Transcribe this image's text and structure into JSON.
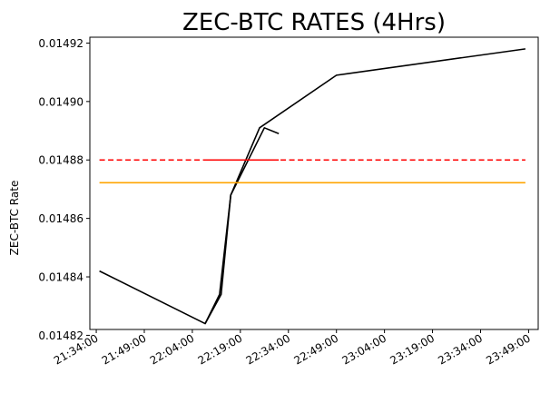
{
  "chart_data": {
    "type": "line",
    "title": "ZEC-BTC RATES (4Hrs)",
    "xlabel": "",
    "ylabel": "ZEC-BTC Rate",
    "x_axis_type": "time",
    "xlim": [
      "21:32:00",
      "23:52:00"
    ],
    "ylim": [
      0.014822,
      0.014922
    ],
    "x_ticks": [
      "21:34:00",
      "21:49:00",
      "22:04:00",
      "22:19:00",
      "22:34:00",
      "22:49:00",
      "23:04:00",
      "23:19:00",
      "23:34:00",
      "23:49:00"
    ],
    "y_ticks": [
      "0.01482",
      "0.01484",
      "0.01486",
      "0.01488",
      "0.01490",
      "0.01492"
    ],
    "grid": false,
    "legend": "none",
    "series": [
      {
        "color": "#000000",
        "style": "solid",
        "points": [
          {
            "x": "21:35:00",
            "y": 0.014842
          },
          {
            "x": "22:08:00",
            "y": 0.014824
          },
          {
            "x": "22:13:00",
            "y": 0.014834
          },
          {
            "x": "22:16:00",
            "y": 0.014868
          },
          {
            "x": "22:25:00",
            "y": 0.014891
          },
          {
            "x": "22:49:00",
            "y": 0.014909
          },
          {
            "x": "23:48:00",
            "y": 0.014918
          }
        ]
      },
      {
        "color": "#000000",
        "style": "solid",
        "points": [
          {
            "x": "22:08:00",
            "y": 0.014824
          },
          {
            "x": "22:12:30",
            "y": 0.014834
          },
          {
            "x": "22:16:00",
            "y": 0.014868
          },
          {
            "x": "22:26:30",
            "y": 0.014891
          },
          {
            "x": "22:31:00",
            "y": 0.014889
          }
        ]
      },
      {
        "color": "#ff0000",
        "style": "dashed",
        "points": [
          {
            "x": "21:35:00",
            "y": 0.01488
          },
          {
            "x": "23:48:00",
            "y": 0.01488
          }
        ]
      },
      {
        "color": "#ff0000",
        "style": "solid",
        "points": [
          {
            "x": "22:08:00",
            "y": 0.01488
          },
          {
            "x": "22:31:00",
            "y": 0.01488
          }
        ]
      },
      {
        "color": "#ffa500",
        "style": "solid",
        "points": [
          {
            "x": "21:35:00",
            "y": 0.0148722
          },
          {
            "x": "23:48:00",
            "y": 0.0148722
          }
        ]
      }
    ]
  }
}
